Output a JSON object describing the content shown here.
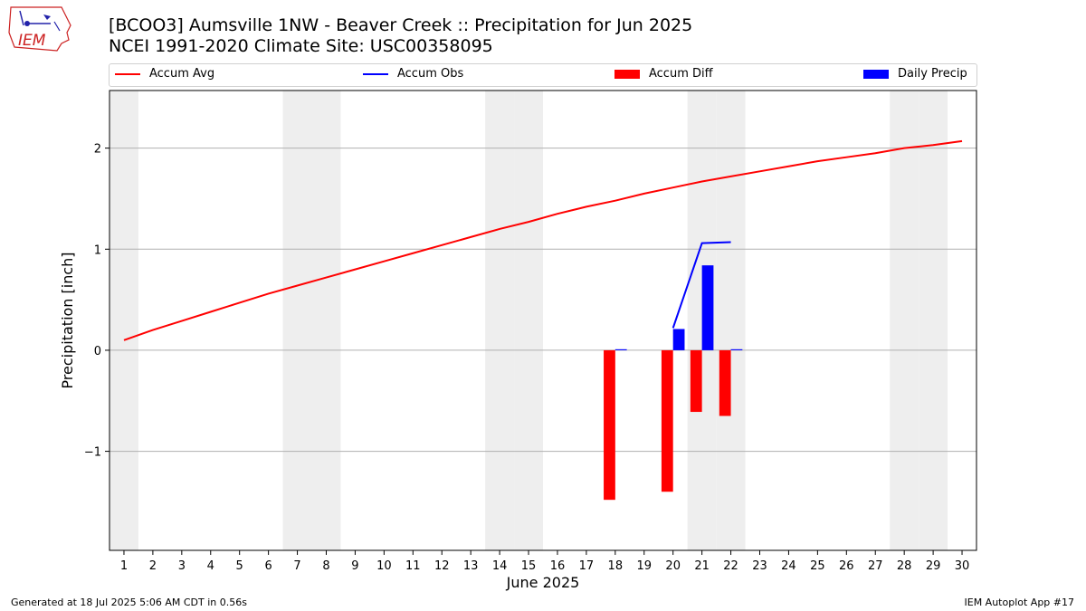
{
  "logo": {
    "icon": "iem-logo-icon",
    "text": "IEM"
  },
  "header": {
    "title": "[BCOO3] Aumsville 1NW - Beaver Creek :: Precipitation for Jun 2025",
    "subtitle": "NCEI 1991-2020 Climate Site: USC00358095"
  },
  "legend": {
    "placement": "top",
    "items": [
      {
        "label": "Accum Avg",
        "color": "#ff0000",
        "kind": "line"
      },
      {
        "label": "Accum Obs",
        "color": "#0000ff",
        "kind": "line"
      },
      {
        "label": "Accum Diff",
        "color": "#ff0000",
        "kind": "bar"
      },
      {
        "label": "Daily Precip",
        "color": "#0000ff",
        "kind": "bar"
      }
    ]
  },
  "footer": {
    "generated": "Generated at 18 Jul 2025 5:06 AM CDT in 0.56s",
    "app": "IEM Autoplot App #17"
  },
  "chart_data": {
    "type": "bar",
    "xlabel": "June 2025",
    "ylabel": "Precipitation [inch]",
    "xlim": [
      0.5,
      30.5
    ],
    "ylim": [
      -1.98,
      2.57
    ],
    "yticks": [
      -1,
      0,
      1,
      2
    ],
    "ytick_labels": [
      "−1",
      "0",
      "1",
      "2"
    ],
    "xticks": [
      1,
      2,
      3,
      4,
      5,
      6,
      7,
      8,
      9,
      10,
      11,
      12,
      13,
      14,
      15,
      16,
      17,
      18,
      19,
      20,
      21,
      22,
      23,
      24,
      25,
      26,
      27,
      28,
      29,
      30
    ],
    "grid": true,
    "weekend_shading": [
      1,
      7,
      8,
      14,
      15,
      21,
      22,
      28,
      29
    ],
    "shading_color": "#eeeeee",
    "accum_avg": {
      "name": "Accum Avg",
      "color": "#ff0000",
      "x": [
        1,
        2,
        3,
        4,
        5,
        6,
        7,
        8,
        9,
        10,
        11,
        12,
        13,
        14,
        15,
        16,
        17,
        18,
        19,
        20,
        21,
        22,
        23,
        24,
        25,
        26,
        27,
        28,
        29,
        30
      ],
      "values": [
        0.1,
        0.2,
        0.29,
        0.38,
        0.47,
        0.56,
        0.64,
        0.72,
        0.8,
        0.88,
        0.96,
        1.04,
        1.12,
        1.2,
        1.27,
        1.35,
        1.42,
        1.48,
        1.55,
        1.61,
        1.67,
        1.72,
        1.77,
        1.82,
        1.87,
        1.91,
        1.95,
        2.0,
        2.03,
        2.07
      ]
    },
    "accum_obs": {
      "name": "Accum Obs",
      "color": "#0000ff",
      "x": [
        20,
        21,
        22
      ],
      "values": [
        0.22,
        1.06,
        1.07
      ]
    },
    "accum_diff": {
      "name": "Accum Diff",
      "color": "#ff0000",
      "x": [
        18,
        20,
        21,
        22
      ],
      "values": [
        -1.48,
        -1.4,
        -0.61,
        -0.65
      ]
    },
    "daily_precip": {
      "name": "Daily Precip",
      "color": "#0000ff",
      "x": [
        18,
        20,
        21,
        22
      ],
      "values": [
        0.01,
        0.21,
        0.84,
        0.01
      ]
    }
  }
}
